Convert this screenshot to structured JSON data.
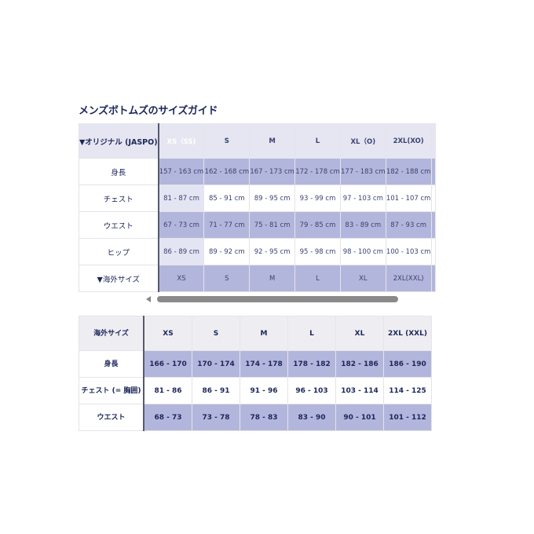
{
  "title": "メンズボトムズのサイズガイド",
  "original_table": {
    "corner_label": "▼オリジナル (JASPO)",
    "headers": [
      "XS（SS)",
      "S",
      "M",
      "L",
      "XL（O)",
      "2XL(XO)",
      ""
    ],
    "rows": [
      {
        "label": "身長",
        "values": [
          "157 - 163 cm",
          "162 - 168 cm",
          "167 - 173 cm",
          "172 - 178 cm",
          "177 - 183 cm",
          "182 - 188 cm",
          ""
        ]
      },
      {
        "label": "チェスト",
        "values": [
          "81 - 87 cm",
          "85 - 91 cm",
          "89 - 95 cm",
          "93 - 99 cm",
          "97 - 103 cm",
          "101 - 107 cm",
          ""
        ]
      },
      {
        "label": "ウエスト",
        "values": [
          "67 - 73 cm",
          "71 - 77 cm",
          "75 - 81 cm",
          "79 - 85 cm",
          "83 - 89 cm",
          "87 - 93 cm",
          ""
        ]
      },
      {
        "label": "ヒップ",
        "values": [
          "86 - 89 cm",
          "89 - 92 cm",
          "92 - 95 cm",
          "95 - 98 cm",
          "98 - 100 cm",
          "100 - 103 cm",
          ""
        ]
      },
      {
        "label": "▼海外サイズ",
        "values": [
          "XS",
          "S",
          "M",
          "L",
          "XL",
          "2XL(XXL)",
          ""
        ]
      }
    ]
  },
  "overseas_table": {
    "corner_label": "海外サイズ",
    "headers": [
      "XS",
      "S",
      "M",
      "L",
      "XL",
      "2XL (XXL)"
    ],
    "rows": [
      {
        "label": "身長",
        "values": [
          "166 - 170",
          "170 - 174",
          "174 - 178",
          "178 - 182",
          "182 - 186",
          "186 - 190"
        ]
      },
      {
        "label": "チェスト (= 胸囲)",
        "values": [
          "81 - 86",
          "86 - 91",
          "91 - 96",
          "96 - 103",
          "103 - 114",
          "114 - 125"
        ]
      },
      {
        "label": "ウエスト",
        "values": [
          "68 - 73",
          "73 - 78",
          "78 - 83",
          "83 - 90",
          "90 - 101",
          "101 - 112"
        ]
      }
    ]
  },
  "colors": {
    "selected": "#4356c4",
    "shade": "#b3b6dc",
    "header": "#e5e6f1",
    "text": "#1c2659"
  },
  "scrollbar": {
    "icon": "left-arrow-icon"
  }
}
